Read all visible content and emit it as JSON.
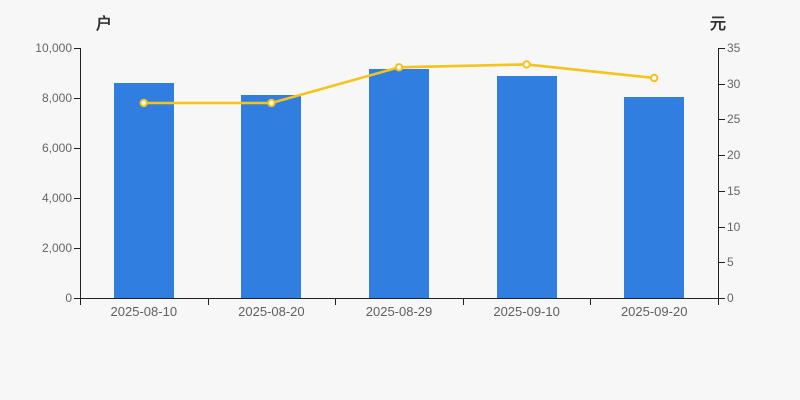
{
  "page": {
    "background": "#f7f7f7"
  },
  "chart_data": {
    "type": "bar+line (dual axis)",
    "categories": [
      "2025-08-10",
      "2025-08-20",
      "2025-08-29",
      "2025-09-10",
      "2025-09-20"
    ],
    "series": [
      {
        "type": "bar",
        "axis": "left",
        "unit": "户",
        "color": "#307ee0",
        "values": [
          8610,
          8130,
          9150,
          8890,
          8050
        ]
      },
      {
        "type": "line",
        "axis": "right",
        "unit": "元",
        "color": "#f5c319",
        "point_fill": "#ffffff",
        "values": [
          27.3,
          27.3,
          32.3,
          32.7,
          30.8
        ]
      }
    ],
    "left_axis": {
      "name": "户",
      "min": 0,
      "max": 10000,
      "tick_labels": [
        "10,000",
        "8,000",
        "6,000",
        "4,000",
        "2,000",
        "0"
      ]
    },
    "right_axis": {
      "name": "元",
      "min": 0,
      "max": 35,
      "tick_labels": [
        "35",
        "30",
        "25",
        "20",
        "15",
        "10",
        "5",
        "0"
      ]
    },
    "grid": false,
    "legend": "none",
    "title": ""
  }
}
